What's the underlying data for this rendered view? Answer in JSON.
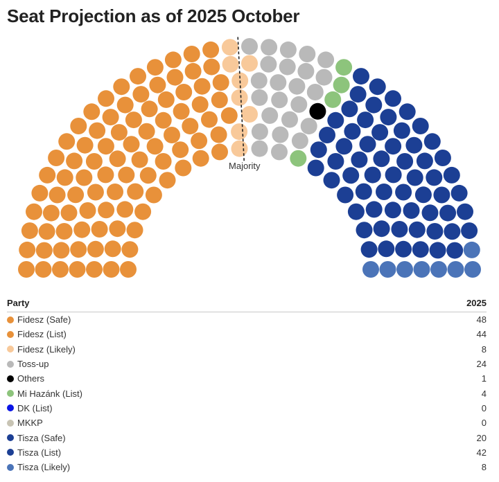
{
  "title": "Seat Projection as of 2025 October",
  "table": {
    "col_party": "Party",
    "col_value": "2025"
  },
  "chart_data": {
    "type": "parliament",
    "title": "Seat Projection as of 2025 October",
    "total_seats": 199,
    "majority_label": "Majority",
    "series": [
      {
        "name": "Fidesz (Safe)",
        "value": 48,
        "color": "#e8913a"
      },
      {
        "name": "Fidesz (List)",
        "value": 44,
        "color": "#e8913a"
      },
      {
        "name": "Fidesz (Likely)",
        "value": 8,
        "color": "#f8c99a"
      },
      {
        "name": "Toss-up",
        "value": 24,
        "color": "#b9b9b9"
      },
      {
        "name": "Others",
        "value": 1,
        "color": "#000000"
      },
      {
        "name": "Mi Hazánk (List)",
        "value": 4,
        "color": "#8dc47c"
      },
      {
        "name": "DK (List)",
        "value": 0,
        "color": "#0a14e6"
      },
      {
        "name": "MKKP",
        "value": 0,
        "color": "#c8c4b4"
      },
      {
        "name": "Tisza (Safe)",
        "value": 20,
        "color": "#1c3f94"
      },
      {
        "name": "Tisza (List)",
        "value": 42,
        "color": "#1c3f94"
      },
      {
        "name": "Tisza (Likely)",
        "value": 8,
        "color": "#4b74b8"
      }
    ]
  }
}
